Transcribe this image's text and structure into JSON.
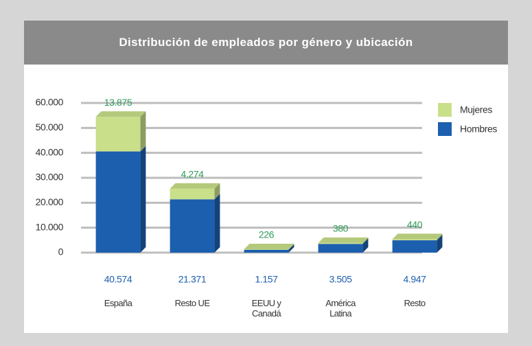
{
  "chart_data": {
    "type": "bar",
    "stacked": true,
    "title": "Distribución de empleados por género y ubicación",
    "categories": [
      "España",
      "Resto UE",
      "EEUU y Canadá",
      "América Latina",
      "Resto"
    ],
    "series": [
      {
        "name": "Hombres",
        "color": "#1c5fae",
        "values": [
          40574,
          21371,
          1157,
          3505,
          4947
        ],
        "value_labels": [
          "40.574",
          "21.371",
          "1.157",
          "3.505",
          "4.947"
        ]
      },
      {
        "name": "Mujeres",
        "color": "#c9df8a",
        "values": [
          13875,
          4274,
          226,
          380,
          440
        ],
        "value_labels": [
          "13.875",
          "4.274",
          "226",
          "380",
          "440"
        ]
      }
    ],
    "ylim": [
      0,
      60000
    ],
    "yticks": [
      0,
      {
        "value": 10000,
        "label": "10.000"
      },
      {
        "value": 20000,
        "label": "20.000"
      },
      {
        "value": 30000,
        "label": "30.000"
      },
      {
        "value": 40000,
        "label": "40.000"
      },
      {
        "value": 50000,
        "label": "50.000"
      },
      {
        "value": 60000,
        "label": "60.000"
      }
    ],
    "grid": true,
    "legend": "upper right"
  }
}
